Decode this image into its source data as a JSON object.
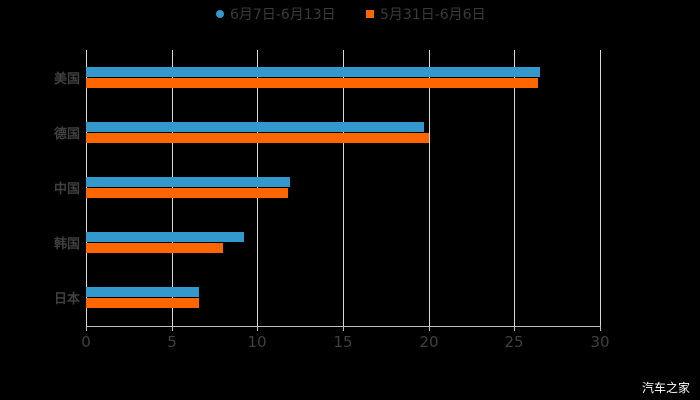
{
  "chart_data": {
    "type": "bar",
    "orientation": "horizontal",
    "title": "",
    "categories": [
      "美国",
      "德国",
      "中国",
      "韩国",
      "日本"
    ],
    "series": [
      {
        "name": "6月7日-6月13日",
        "color": "#3399cc",
        "values": [
          26.5,
          19.7,
          11.9,
          9.2,
          6.6
        ]
      },
      {
        "name": "5月31日-6月6日",
        "color": "#ff6600",
        "values": [
          26.4,
          20.0,
          11.8,
          8.0,
          6.6
        ]
      }
    ],
    "xlabel": "",
    "ylabel": "",
    "xlim": [
      0,
      30
    ],
    "xticks": [
      "0",
      "5",
      "10",
      "15",
      "20",
      "25",
      "30"
    ],
    "grid": true,
    "legend_position": "top"
  },
  "legend": [
    {
      "label": "6月7日-6月13日",
      "color": "#3399cc",
      "shape": "circle"
    },
    {
      "label": "5月31日-6月6日",
      "color": "#ff6600",
      "shape": "square"
    }
  ],
  "watermark": "汽车之家"
}
